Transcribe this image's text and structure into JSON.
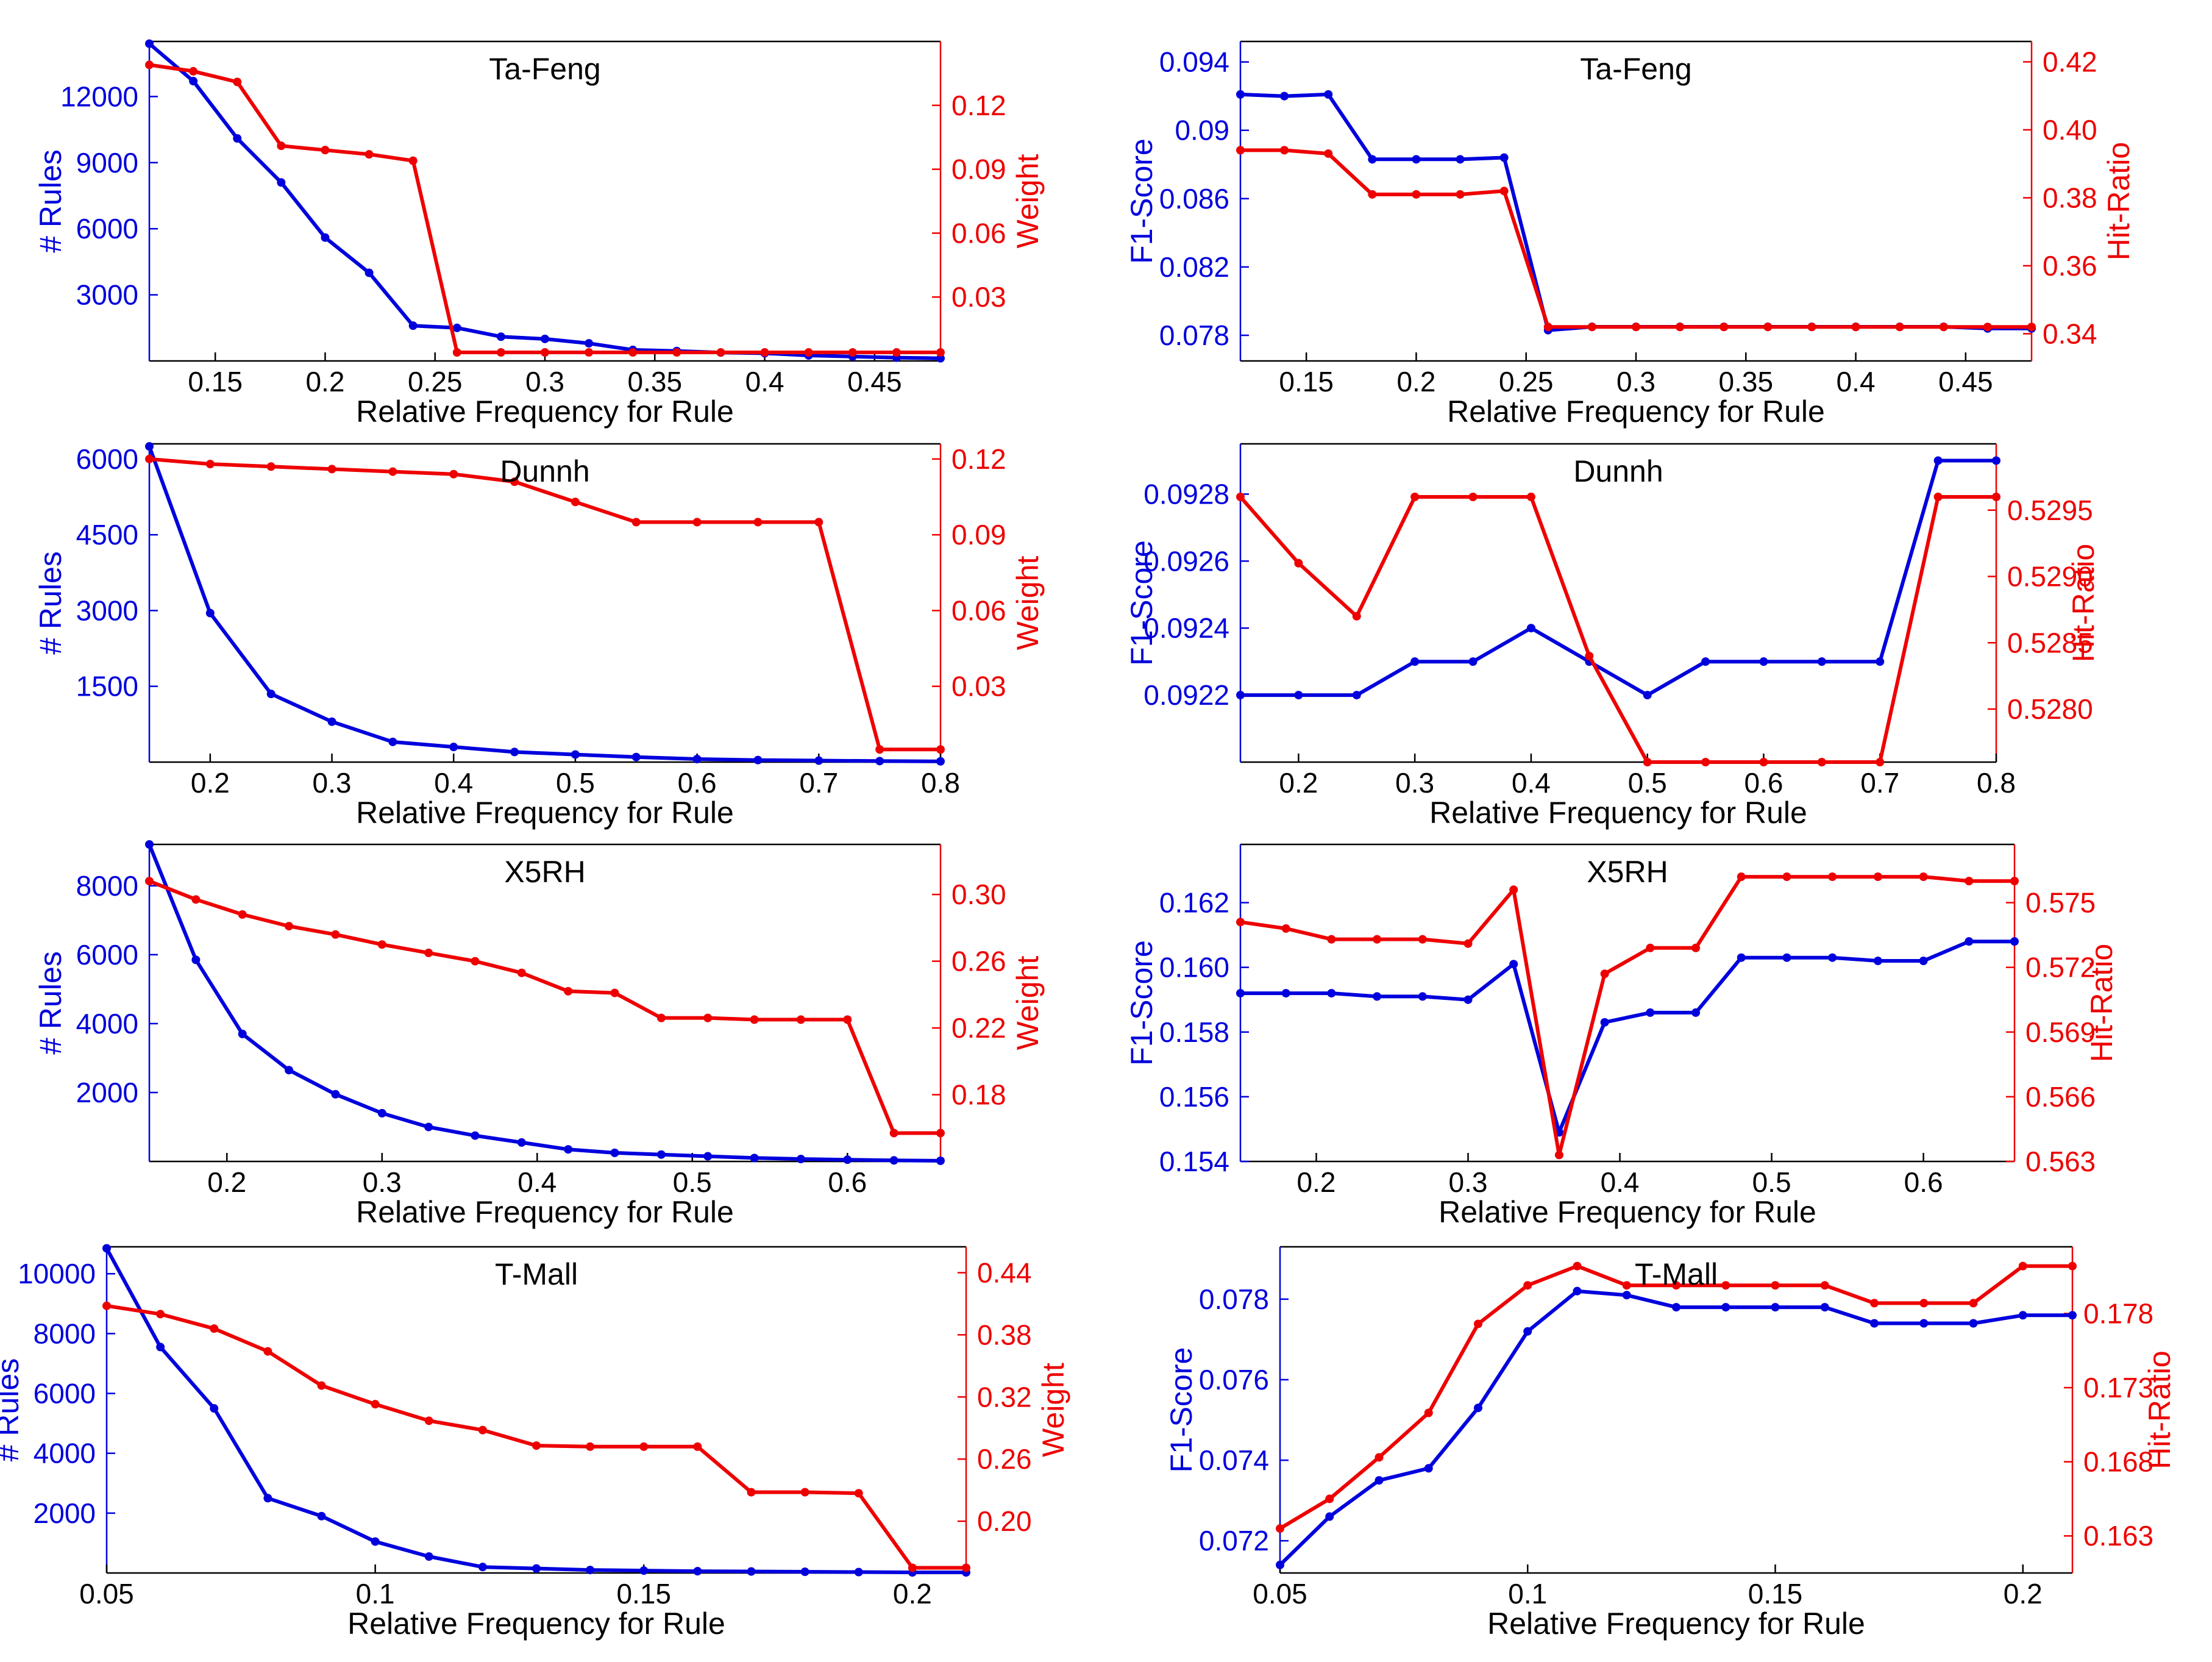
{
  "colors": {
    "left_series": "#0000dd",
    "right_series": "#ee0000",
    "axis": "#000000"
  },
  "chart_data": [
    {
      "type": "line",
      "title": "Ta-Feng",
      "xlabel": "Relative Frequency for Rule",
      "xlim": [
        0.12,
        0.48
      ],
      "xticks": [
        0.15,
        0.2,
        0.25,
        0.3,
        0.35,
        0.4,
        0.45
      ],
      "xtick_labels": [
        "0.15",
        "0.2",
        "0.25",
        "0.3",
        "0.35",
        "0.4",
        "0.45"
      ],
      "left": {
        "name": "# Rules",
        "ylabel": "# Rules",
        "ylim": [
          0,
          14500
        ],
        "yticks": [
          3000,
          6000,
          9000,
          12000
        ],
        "ytick_labels": [
          "3000",
          "6000",
          "9000",
          "12000"
        ],
        "x": [
          0.12,
          0.14,
          0.16,
          0.18,
          0.2,
          0.22,
          0.24,
          0.26,
          0.28,
          0.3,
          0.32,
          0.34,
          0.36,
          0.38,
          0.4,
          0.42,
          0.44,
          0.46,
          0.48
        ],
        "values": [
          14400,
          12700,
          10100,
          8100,
          5600,
          4000,
          1600,
          1500,
          1100,
          1000,
          800,
          500,
          450,
          380,
          350,
          250,
          200,
          150,
          120
        ]
      },
      "right": {
        "name": "Weight",
        "ylabel": "Weight",
        "ylim": [
          0,
          0.15
        ],
        "yticks": [
          0.03,
          0.06,
          0.09,
          0.12
        ],
        "ytick_labels": [
          "0.03",
          "0.06",
          "0.09",
          "0.12"
        ],
        "x": [
          0.12,
          0.14,
          0.16,
          0.18,
          0.2,
          0.22,
          0.24,
          0.26,
          0.28,
          0.3,
          0.32,
          0.34,
          0.36,
          0.38,
          0.4,
          0.42,
          0.44,
          0.46,
          0.48
        ],
        "values": [
          0.139,
          0.136,
          0.131,
          0.101,
          0.099,
          0.097,
          0.094,
          0.004,
          0.004,
          0.004,
          0.004,
          0.004,
          0.004,
          0.004,
          0.004,
          0.004,
          0.004,
          0.004,
          0.004
        ]
      }
    },
    {
      "type": "line",
      "title": "Ta-Feng",
      "xlabel": "Relative Frequency for Rule",
      "xlim": [
        0.12,
        0.48
      ],
      "xticks": [
        0.15,
        0.2,
        0.25,
        0.3,
        0.35,
        0.4,
        0.45
      ],
      "xtick_labels": [
        "0.15",
        "0.2",
        "0.25",
        "0.3",
        "0.35",
        "0.4",
        "0.45"
      ],
      "left": {
        "name": "F1-Score",
        "ylabel": "F1-Score",
        "ylim": [
          0.0765,
          0.0952
        ],
        "yticks": [
          0.078,
          0.082,
          0.086,
          0.09,
          0.094
        ],
        "ytick_labels": [
          "0.078",
          "0.082",
          "0.086",
          "0.09",
          "0.094"
        ],
        "x": [
          0.12,
          0.14,
          0.16,
          0.18,
          0.2,
          0.22,
          0.24,
          0.26,
          0.28,
          0.3,
          0.32,
          0.34,
          0.36,
          0.38,
          0.4,
          0.42,
          0.44,
          0.46,
          0.48
        ],
        "values": [
          0.0921,
          0.092,
          0.0921,
          0.0883,
          0.0883,
          0.0883,
          0.0884,
          0.0783,
          0.0785,
          0.0785,
          0.0785,
          0.0785,
          0.0785,
          0.0785,
          0.0785,
          0.0785,
          0.0785,
          0.0784,
          0.0784
        ]
      },
      "right": {
        "name": "Hit-Ratio",
        "ylabel": "Hit-Ratio",
        "ylim": [
          0.332,
          0.426
        ],
        "yticks": [
          0.34,
          0.36,
          0.38,
          0.4,
          0.42
        ],
        "ytick_labels": [
          "0.34",
          "0.36",
          "0.38",
          "0.40",
          "0.42"
        ],
        "x": [
          0.12,
          0.14,
          0.16,
          0.18,
          0.2,
          0.22,
          0.24,
          0.26,
          0.28,
          0.3,
          0.32,
          0.34,
          0.36,
          0.38,
          0.4,
          0.42,
          0.44,
          0.46,
          0.48
        ],
        "values": [
          0.394,
          0.394,
          0.393,
          0.381,
          0.381,
          0.381,
          0.382,
          0.342,
          0.342,
          0.342,
          0.342,
          0.342,
          0.342,
          0.342,
          0.342,
          0.342,
          0.342,
          0.342,
          0.342
        ]
      }
    },
    {
      "type": "line",
      "title": "Dunnh",
      "xlabel": "Relative Frequency for Rule",
      "xlim": [
        0.15,
        0.8
      ],
      "xticks": [
        0.2,
        0.3,
        0.4,
        0.5,
        0.6,
        0.7,
        0.8
      ],
      "xtick_labels": [
        "0.2",
        "0.3",
        "0.4",
        "0.5",
        "0.6",
        "0.7",
        "0.8"
      ],
      "left": {
        "name": "# Rules",
        "ylabel": "# Rules",
        "ylim": [
          0,
          6300
        ],
        "yticks": [
          1500,
          3000,
          4500,
          6000
        ],
        "ytick_labels": [
          "1500",
          "3000",
          "4500",
          "6000"
        ],
        "x": [
          0.15,
          0.2,
          0.25,
          0.3,
          0.35,
          0.4,
          0.45,
          0.5,
          0.55,
          0.6,
          0.65,
          0.7,
          0.75,
          0.8
        ],
        "values": [
          6250,
          2950,
          1350,
          800,
          400,
          300,
          200,
          150,
          100,
          60,
          40,
          30,
          20,
          15
        ]
      },
      "right": {
        "name": "Weight",
        "ylabel": "Weight",
        "ylim": [
          0,
          0.126
        ],
        "yticks": [
          0.03,
          0.06,
          0.09,
          0.12
        ],
        "ytick_labels": [
          "0.03",
          "0.06",
          "0.09",
          "0.12"
        ],
        "x": [
          0.15,
          0.2,
          0.25,
          0.3,
          0.35,
          0.4,
          0.45,
          0.5,
          0.55,
          0.6,
          0.65,
          0.7,
          0.75,
          0.8
        ],
        "values": [
          0.12,
          0.118,
          0.117,
          0.116,
          0.115,
          0.114,
          0.111,
          0.103,
          0.095,
          0.095,
          0.095,
          0.095,
          0.005,
          0.005
        ]
      }
    },
    {
      "type": "line",
      "title": "Dunnh",
      "xlabel": "Relative Frequency for Rule",
      "xlim": [
        0.15,
        0.8
      ],
      "xticks": [
        0.2,
        0.3,
        0.4,
        0.5,
        0.6,
        0.7,
        0.8
      ],
      "xtick_labels": [
        "0.2",
        "0.3",
        "0.4",
        "0.5",
        "0.6",
        "0.7",
        "0.8"
      ],
      "left": {
        "name": "F1-Score",
        "ylabel": "F1-Score",
        "ylim": [
          0.092,
          0.09295
        ],
        "yticks": [
          0.0922,
          0.0924,
          0.0926,
          0.0928
        ],
        "ytick_labels": [
          "0.0922",
          "0.0924",
          "0.0926",
          "0.0928"
        ],
        "x": [
          0.15,
          0.2,
          0.25,
          0.3,
          0.35,
          0.4,
          0.45,
          0.5,
          0.55,
          0.6,
          0.65,
          0.7,
          0.75,
          0.8
        ],
        "values": [
          0.0922,
          0.0922,
          0.0922,
          0.0923,
          0.0923,
          0.0924,
          0.0923,
          0.0922,
          0.0923,
          0.0923,
          0.0923,
          0.0923,
          0.0929,
          0.0929
        ]
      },
      "right": {
        "name": "Hit-Ratio",
        "ylabel": "Hit-Ratio",
        "ylim": [
          0.5276,
          0.53
        ],
        "yticks": [
          0.528,
          0.5285,
          0.529,
          0.5295
        ],
        "ytick_labels": [
          "0.5280",
          "0.5285",
          "0.5290",
          "0.5295"
        ],
        "x": [
          0.15,
          0.2,
          0.25,
          0.3,
          0.35,
          0.4,
          0.45,
          0.5,
          0.55,
          0.6,
          0.65,
          0.7,
          0.75,
          0.8
        ],
        "values": [
          0.5296,
          0.5291,
          0.5287,
          0.5296,
          0.5296,
          0.5296,
          0.5284,
          0.5276,
          0.5276,
          0.5276,
          0.5276,
          0.5276,
          0.5296,
          0.5296
        ]
      }
    },
    {
      "type": "line",
      "title": "X5RH",
      "xlabel": "Relative Frequency for Rule",
      "xlim": [
        0.15,
        0.66
      ],
      "xticks": [
        0.2,
        0.3,
        0.4,
        0.5,
        0.6
      ],
      "xtick_labels": [
        "0.2",
        "0.3",
        "0.4",
        "0.5",
        "0.6"
      ],
      "left": {
        "name": "# Rules",
        "ylabel": "# Rules",
        "ylim": [
          0,
          9200
        ],
        "yticks": [
          2000,
          4000,
          6000,
          8000
        ],
        "ytick_labels": [
          "2000",
          "4000",
          "6000",
          "8000"
        ],
        "x": [
          0.15,
          0.18,
          0.21,
          0.24,
          0.27,
          0.3,
          0.33,
          0.36,
          0.39,
          0.42,
          0.45,
          0.48,
          0.51,
          0.54,
          0.57,
          0.6,
          0.63,
          0.66
        ],
        "values": [
          9200,
          5850,
          3700,
          2650,
          1950,
          1400,
          1000,
          750,
          550,
          350,
          250,
          200,
          150,
          100,
          70,
          50,
          30,
          20
        ]
      },
      "right": {
        "name": "Weight",
        "ylabel": "Weight",
        "ylim": [
          0.14,
          0.33
        ],
        "yticks": [
          0.18,
          0.22,
          0.26,
          0.3
        ],
        "ytick_labels": [
          "0.18",
          "0.22",
          "0.26",
          "0.30"
        ],
        "x": [
          0.15,
          0.18,
          0.21,
          0.24,
          0.27,
          0.3,
          0.33,
          0.36,
          0.39,
          0.42,
          0.45,
          0.48,
          0.51,
          0.54,
          0.57,
          0.6,
          0.63,
          0.66
        ],
        "values": [
          0.308,
          0.297,
          0.288,
          0.281,
          0.276,
          0.27,
          0.265,
          0.26,
          0.253,
          0.242,
          0.241,
          0.226,
          0.226,
          0.225,
          0.225,
          0.225,
          0.157,
          0.157
        ]
      }
    },
    {
      "type": "line",
      "title": "X5RH",
      "xlabel": "Relative Frequency for Rule",
      "xlim": [
        0.15,
        0.66
      ],
      "xticks": [
        0.2,
        0.3,
        0.4,
        0.5,
        0.6
      ],
      "xtick_labels": [
        "0.2",
        "0.3",
        "0.4",
        "0.5",
        "0.6"
      ],
      "left": {
        "name": "F1-Score",
        "ylabel": "F1-Score",
        "ylim": [
          0.154,
          0.1638
        ],
        "yticks": [
          0.154,
          0.156,
          0.158,
          0.16,
          0.162
        ],
        "ytick_labels": [
          "0.154",
          "0.156",
          "0.158",
          "0.160",
          "0.162"
        ],
        "x": [
          0.15,
          0.18,
          0.21,
          0.24,
          0.27,
          0.3,
          0.33,
          0.36,
          0.39,
          0.42,
          0.45,
          0.48,
          0.51,
          0.54,
          0.57,
          0.6,
          0.63,
          0.66
        ],
        "values": [
          0.1592,
          0.1592,
          0.1592,
          0.1591,
          0.1591,
          0.159,
          0.1601,
          0.1549,
          0.1583,
          0.1586,
          0.1586,
          0.1603,
          0.1603,
          0.1603,
          0.1602,
          0.1602,
          0.1608,
          0.1608
        ]
      },
      "right": {
        "name": "Hit-Ratio",
        "ylabel": "Hit-Ratio",
        "ylim": [
          0.563,
          0.5777
        ],
        "yticks": [
          0.563,
          0.566,
          0.569,
          0.572,
          0.575
        ],
        "ytick_labels": [
          "0.563",
          "0.566",
          "0.569",
          "0.572",
          "0.575"
        ],
        "x": [
          0.15,
          0.18,
          0.21,
          0.24,
          0.27,
          0.3,
          0.33,
          0.36,
          0.39,
          0.42,
          0.45,
          0.48,
          0.51,
          0.54,
          0.57,
          0.6,
          0.63,
          0.66
        ],
        "values": [
          0.5741,
          0.5738,
          0.5733,
          0.5733,
          0.5733,
          0.5731,
          0.5756,
          0.5633,
          0.5717,
          0.5729,
          0.5729,
          0.5762,
          0.5762,
          0.5762,
          0.5762,
          0.5762,
          0.576,
          0.576
        ]
      }
    },
    {
      "type": "line",
      "title": "T-Mall",
      "xlabel": "Relative Frequency for Rule",
      "xlim": [
        0.05,
        0.21
      ],
      "xticks": [
        0.05,
        0.1,
        0.15,
        0.2
      ],
      "xtick_labels": [
        "0.05",
        "0.1",
        "0.15",
        "0.2"
      ],
      "left": {
        "name": "# Rules",
        "ylabel": "# Rules",
        "ylim": [
          0,
          10900
        ],
        "yticks": [
          2000,
          4000,
          6000,
          8000,
          10000
        ],
        "ytick_labels": [
          "2000",
          "4000",
          "6000",
          "8000",
          "10000"
        ],
        "x": [
          0.05,
          0.06,
          0.07,
          0.08,
          0.09,
          0.1,
          0.11,
          0.12,
          0.13,
          0.14,
          0.15,
          0.16,
          0.17,
          0.18,
          0.19,
          0.2,
          0.21
        ],
        "values": [
          10850,
          7550,
          5500,
          2500,
          1900,
          1050,
          550,
          200,
          150,
          100,
          80,
          60,
          50,
          40,
          30,
          20,
          20
        ]
      },
      "right": {
        "name": "Weight",
        "ylabel": "Weight",
        "ylim": [
          0.15,
          0.465
        ],
        "yticks": [
          0.2,
          0.26,
          0.32,
          0.38,
          0.44
        ],
        "ytick_labels": [
          "0.20",
          "0.26",
          "0.32",
          "0.38",
          "0.44"
        ],
        "x": [
          0.05,
          0.06,
          0.07,
          0.08,
          0.09,
          0.1,
          0.11,
          0.12,
          0.13,
          0.14,
          0.15,
          0.16,
          0.17,
          0.18,
          0.19,
          0.2,
          0.21
        ],
        "values": [
          0.408,
          0.4,
          0.386,
          0.364,
          0.331,
          0.313,
          0.297,
          0.288,
          0.273,
          0.272,
          0.272,
          0.272,
          0.228,
          0.228,
          0.227,
          0.155,
          0.155
        ]
      }
    },
    {
      "type": "line",
      "title": "T-Mall",
      "xlabel": "Relative Frequency for Rule",
      "xlim": [
        0.05,
        0.21
      ],
      "xticks": [
        0.05,
        0.1,
        0.15,
        0.2
      ],
      "xtick_labels": [
        "0.05",
        "0.1",
        "0.15",
        "0.2"
      ],
      "left": {
        "name": "F1-Score",
        "ylabel": "F1-Score",
        "ylim": [
          0.0712,
          0.0793
        ],
        "yticks": [
          0.072,
          0.074,
          0.076,
          0.078
        ],
        "ytick_labels": [
          "0.072",
          "0.074",
          "0.076",
          "0.078"
        ],
        "x": [
          0.05,
          0.06,
          0.07,
          0.08,
          0.09,
          0.1,
          0.11,
          0.12,
          0.13,
          0.14,
          0.15,
          0.16,
          0.17,
          0.18,
          0.19,
          0.2,
          0.21
        ],
        "values": [
          0.0714,
          0.0726,
          0.0735,
          0.0738,
          0.0753,
          0.0772,
          0.0782,
          0.0781,
          0.0778,
          0.0778,
          0.0778,
          0.0778,
          0.0774,
          0.0774,
          0.0774,
          0.0776,
          0.0776
        ]
      },
      "right": {
        "name": "Hit-Ratio",
        "ylabel": "Hit-Ratio",
        "ylim": [
          0.1605,
          0.1825
        ],
        "yticks": [
          0.163,
          0.168,
          0.173,
          0.178
        ],
        "ytick_labels": [
          "0.163",
          "0.168",
          "0.173",
          "0.178"
        ],
        "x": [
          0.05,
          0.06,
          0.07,
          0.08,
          0.09,
          0.1,
          0.11,
          0.12,
          0.13,
          0.14,
          0.15,
          0.16,
          0.17,
          0.18,
          0.19,
          0.2,
          0.21
        ],
        "values": [
          0.1635,
          0.1655,
          0.1683,
          0.1713,
          0.1773,
          0.1799,
          0.1812,
          0.1799,
          0.1799,
          0.1799,
          0.1799,
          0.1799,
          0.1787,
          0.1787,
          0.1787,
          0.1812,
          0.1812
        ]
      }
    }
  ]
}
